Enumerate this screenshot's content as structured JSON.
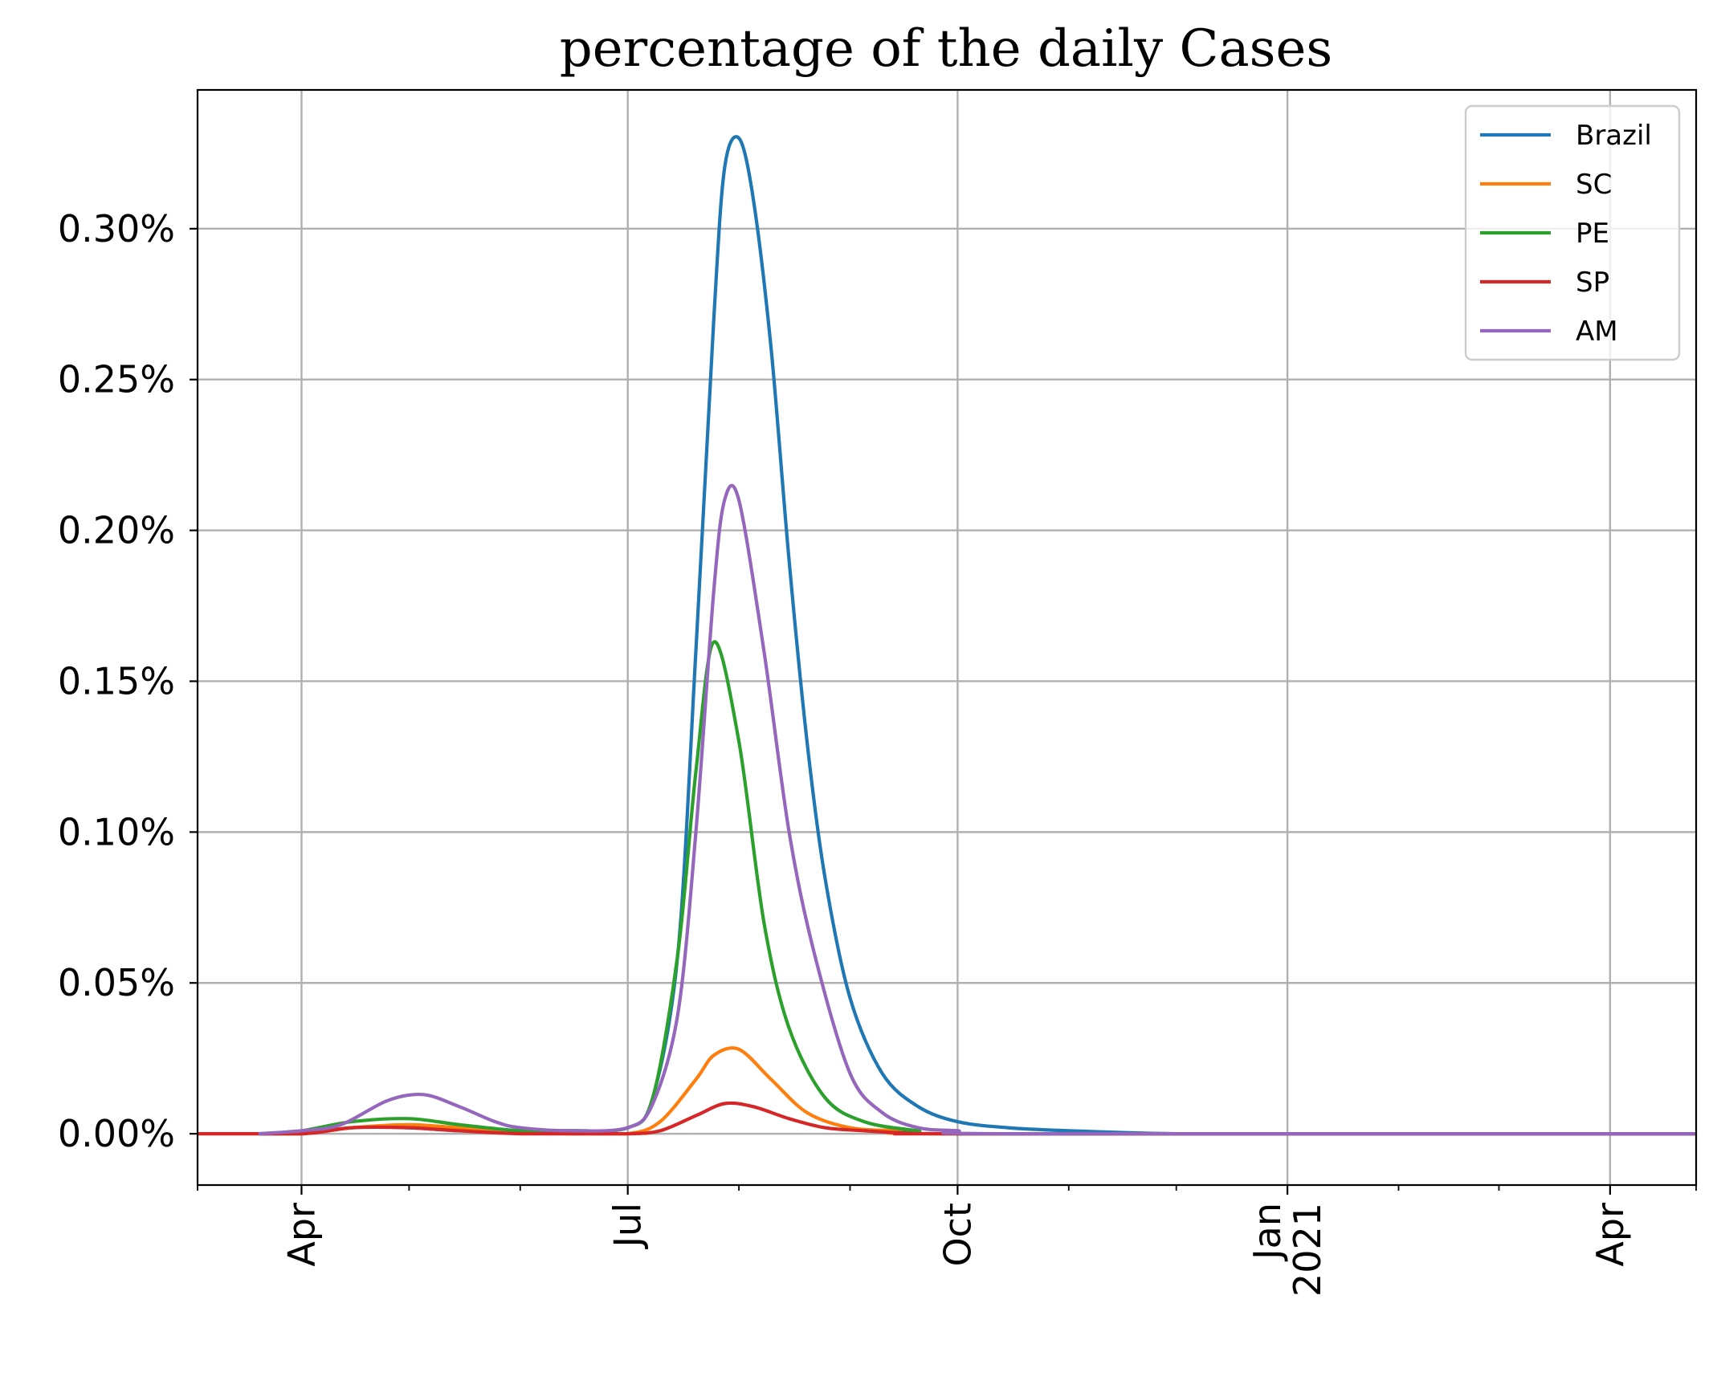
{
  "chart_data": {
    "type": "line",
    "title": "percentage of the daily Cases",
    "xlabel": "",
    "ylabel": "",
    "x_axis_type": "date",
    "xlim": [
      "2020-03-03",
      "2021-04-25"
    ],
    "ylim": [
      -0.00017,
      0.00346
    ],
    "y_format": "percent",
    "grid": true,
    "legend_position": "top-right",
    "x_ticks": [
      {
        "date": "2020-04-01",
        "label": "Apr"
      },
      {
        "date": "2020-07-01",
        "label": "Jul"
      },
      {
        "date": "2020-10-01",
        "label": "Oct"
      },
      {
        "date": "2021-01-01",
        "label": "Jan\n2021"
      },
      {
        "date": "2021-04-01",
        "label": "Apr"
      }
    ],
    "y_ticks": [
      {
        "value": 0.0,
        "label": "0.00%"
      },
      {
        "value": 0.0005,
        "label": "0.05%"
      },
      {
        "value": 0.001,
        "label": "0.10%"
      },
      {
        "value": 0.0015,
        "label": "0.15%"
      },
      {
        "value": 0.002,
        "label": "0.20%"
      },
      {
        "value": 0.0025,
        "label": "0.25%"
      },
      {
        "value": 0.003,
        "label": "0.30%"
      }
    ],
    "series": [
      {
        "name": "Brazil",
        "color": "#1f77b4",
        "x": [
          "2020-03-20",
          "2020-04-01",
          "2020-04-15",
          "2020-05-01",
          "2020-05-15",
          "2020-06-01",
          "2020-06-15",
          "2020-07-01",
          "2020-07-08",
          "2020-07-15",
          "2020-07-20",
          "2020-07-25",
          "2020-07-28",
          "2020-08-01",
          "2020-08-05",
          "2020-08-10",
          "2020-08-15",
          "2020-08-20",
          "2020-08-25",
          "2020-09-01",
          "2020-09-10",
          "2020-09-20",
          "2020-10-01",
          "2020-10-15",
          "2020-11-01",
          "2020-12-01",
          "2021-01-01",
          "2021-04-25"
        ],
        "y": [
          0.0,
          0.0,
          2e-05,
          2e-05,
          1e-05,
          1e-05,
          1e-05,
          2e-05,
          0.00012,
          0.0006,
          0.0016,
          0.0027,
          0.0032,
          0.0033,
          0.0031,
          0.0026,
          0.0019,
          0.0013,
          0.00085,
          0.00045,
          0.0002,
          9e-05,
          4e-05,
          2e-05,
          1e-05,
          0.0,
          0.0,
          0.0
        ]
      },
      {
        "name": "SC",
        "color": "#ff7f0e",
        "x": [
          "2020-03-20",
          "2020-04-01",
          "2020-04-15",
          "2020-05-01",
          "2020-05-15",
          "2020-06-01",
          "2020-06-15",
          "2020-07-01",
          "2020-07-10",
          "2020-07-20",
          "2020-07-25",
          "2020-08-01",
          "2020-08-10",
          "2020-08-20",
          "2020-09-01",
          "2020-09-15",
          "2020-10-01",
          "2021-04-25"
        ],
        "y": [
          0.0,
          0.0,
          2e-05,
          3e-05,
          2e-05,
          1e-05,
          0.0,
          0.0,
          4e-05,
          0.00018,
          0.00026,
          0.00028,
          0.00018,
          7e-05,
          2e-05,
          1e-05,
          0.0,
          0.0
        ]
      },
      {
        "name": "PE",
        "color": "#2ca02c",
        "x": [
          "2020-03-20",
          "2020-04-01",
          "2020-04-15",
          "2020-05-01",
          "2020-05-15",
          "2020-06-01",
          "2020-06-15",
          "2020-07-01",
          "2020-07-08",
          "2020-07-15",
          "2020-07-20",
          "2020-07-25",
          "2020-08-01",
          "2020-08-08",
          "2020-08-15",
          "2020-08-25",
          "2020-09-05",
          "2020-09-20",
          "2020-10-01",
          "2021-04-25"
        ],
        "y": [
          0.0,
          1e-05,
          4e-05,
          5e-05,
          3e-05,
          1e-05,
          1e-05,
          2e-05,
          0.00012,
          0.0006,
          0.0012,
          0.00163,
          0.0013,
          0.0007,
          0.00035,
          0.00012,
          4e-05,
          1e-05,
          0.0,
          0.0
        ]
      },
      {
        "name": "SP",
        "color": "#d62728",
        "x": [
          "2020-03-03",
          "2020-04-01",
          "2020-04-15",
          "2020-05-01",
          "2020-05-15",
          "2020-06-01",
          "2020-06-15",
          "2020-07-01",
          "2020-07-10",
          "2020-07-20",
          "2020-07-28",
          "2020-08-05",
          "2020-08-15",
          "2020-08-25",
          "2020-09-05",
          "2020-09-20",
          "2020-10-01",
          "2021-04-25"
        ],
        "y": [
          0.0,
          0.0,
          2e-05,
          2e-05,
          1e-05,
          0.0,
          0.0,
          0.0,
          1e-05,
          6e-05,
          0.0001,
          9e-05,
          5e-05,
          2e-05,
          1e-05,
          0.0,
          0.0,
          0.0
        ]
      },
      {
        "name": "AM",
        "color": "#9467bd",
        "x": [
          "2020-03-20",
          "2020-04-01",
          "2020-04-12",
          "2020-04-25",
          "2020-05-05",
          "2020-05-15",
          "2020-05-25",
          "2020-06-01",
          "2020-06-15",
          "2020-07-01",
          "2020-07-08",
          "2020-07-15",
          "2020-07-20",
          "2020-07-25",
          "2020-07-28",
          "2020-08-01",
          "2020-08-08",
          "2020-08-15",
          "2020-08-22",
          "2020-09-01",
          "2020-09-10",
          "2020-09-20",
          "2020-10-01",
          "2020-10-15",
          "2021-04-25"
        ],
        "y": [
          0.0,
          1e-05,
          3e-05,
          0.00011,
          0.00013,
          9e-05,
          4e-05,
          2e-05,
          1e-05,
          2e-05,
          0.0001,
          0.0004,
          0.001,
          0.0018,
          0.0021,
          0.0021,
          0.0016,
          0.001,
          0.0006,
          0.0002,
          7e-05,
          2e-05,
          1e-05,
          0.0,
          0.0
        ]
      }
    ]
  }
}
